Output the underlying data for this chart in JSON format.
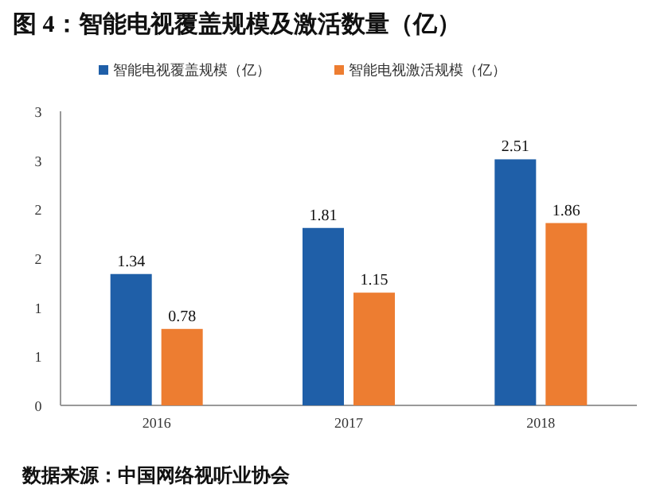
{
  "chart_data": {
    "type": "bar",
    "title": "图 4：智能电视覆盖规模及激活数量（亿）",
    "categories": [
      "2016",
      "2017",
      "2018"
    ],
    "series": [
      {
        "name": "智能电视覆盖规模（亿）",
        "color": "#1f5fa8",
        "values": [
          1.34,
          1.81,
          2.51
        ]
      },
      {
        "name": "智能电视激活规模（亿）",
        "color": "#ed7d31",
        "values": [
          0.78,
          1.15,
          1.86
        ]
      }
    ],
    "ylim": [
      0,
      3
    ],
    "yticks": [
      0,
      {
        "value": 0.5,
        "label": "1"
      },
      1,
      {
        "value": 1.5,
        "label": "2"
      },
      2,
      {
        "value": 2.5,
        "label": "3"
      },
      3
    ],
    "data_labels": true,
    "grid": false,
    "legend": "top",
    "annotations": [
      "数据来源：中国网络视听业协会"
    ]
  }
}
